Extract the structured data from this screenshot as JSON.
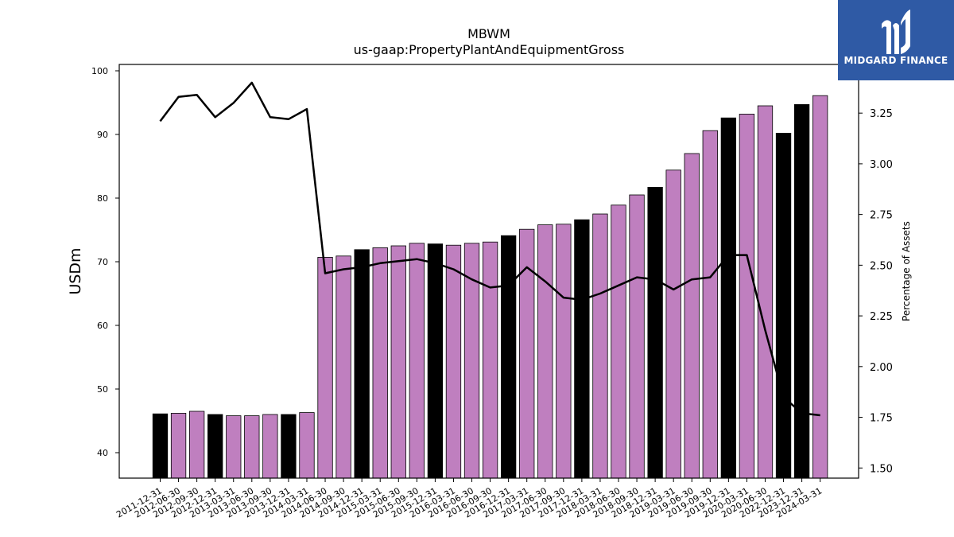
{
  "brand": {
    "name": "MIDGARD FINANCE",
    "logo_icon": "midgard-logo-icon",
    "background_color": "#2f5aa5"
  },
  "chart_data": {
    "type": "bar",
    "title": "MBWM",
    "subtitle": "us-gaap:PropertyPlantAndEquipmentGross",
    "ylabel": "USDm",
    "y2label": "Percentage of Assets",
    "ylim": [
      36,
      101
    ],
    "y2lim": [
      1.45,
      3.49
    ],
    "yticks": [
      40,
      50,
      60,
      70,
      80,
      90,
      100
    ],
    "y2ticks": [
      "1.50",
      "1.75",
      "2.00",
      "2.25",
      "2.50",
      "2.75",
      "3.00",
      "3.25"
    ],
    "categories": [
      "2011-12-31",
      "2012-06-30",
      "2012-09-30",
      "2012-12-31",
      "2013-03-31",
      "2013-06-30",
      "2013-09-30",
      "2013-12-31",
      "2014-03-31",
      "2014-06-30",
      "2014-09-30",
      "2014-12-31",
      "2015-03-31",
      "2015-06-30",
      "2015-09-30",
      "2015-12-31",
      "2016-03-31",
      "2016-06-30",
      "2016-09-30",
      "2016-12-31",
      "2017-03-31",
      "2017-06-30",
      "2017-09-30",
      "2017-12-31",
      "2018-03-31",
      "2018-06-30",
      "2018-09-30",
      "2018-12-31",
      "2019-03-31",
      "2019-06-30",
      "2019-09-30",
      "2019-12-31",
      "2020-03-31",
      "2020-06-30",
      "2022-12-31",
      "2023-12-31",
      "2024-03-31"
    ],
    "series": [
      {
        "kind": "bar",
        "values": [
          46.1,
          46.2,
          46.5,
          46.0,
          45.8,
          45.8,
          46.0,
          46.0,
          46.3,
          70.7,
          70.9,
          71.9,
          72.2,
          72.5,
          72.9,
          72.8,
          72.6,
          72.9,
          73.1,
          74.1,
          75.1,
          75.8,
          75.9,
          76.6,
          77.5,
          78.9,
          80.5,
          81.7,
          84.4,
          87.0,
          90.6,
          92.6,
          93.2,
          94.5,
          90.2,
          94.7,
          96.1
        ],
        "colors": [
          "#000000",
          "#bf7fbf",
          "#bf7fbf",
          "#000000",
          "#bf7fbf",
          "#bf7fbf",
          "#bf7fbf",
          "#000000",
          "#bf7fbf",
          "#bf7fbf",
          "#bf7fbf",
          "#000000",
          "#bf7fbf",
          "#bf7fbf",
          "#bf7fbf",
          "#000000",
          "#bf7fbf",
          "#bf7fbf",
          "#bf7fbf",
          "#000000",
          "#bf7fbf",
          "#bf7fbf",
          "#bf7fbf",
          "#000000",
          "#bf7fbf",
          "#bf7fbf",
          "#bf7fbf",
          "#000000",
          "#bf7fbf",
          "#bf7fbf",
          "#bf7fbf",
          "#000000",
          "#bf7fbf",
          "#bf7fbf",
          "#000000",
          "#000000",
          "#bf7fbf"
        ]
      },
      {
        "kind": "line",
        "axis": "right",
        "color": "#000000",
        "values": [
          3.21,
          3.33,
          3.34,
          3.23,
          3.3,
          3.4,
          3.23,
          3.22,
          3.27,
          2.46,
          2.48,
          2.49,
          2.51,
          2.52,
          2.53,
          2.51,
          2.48,
          2.43,
          2.39,
          2.4,
          2.49,
          2.42,
          2.34,
          2.33,
          2.36,
          2.4,
          2.44,
          2.43,
          2.38,
          2.43,
          2.44,
          2.55,
          2.55,
          2.18,
          1.85,
          1.77,
          1.76
        ]
      }
    ],
    "grid": false,
    "legend": "none"
  }
}
